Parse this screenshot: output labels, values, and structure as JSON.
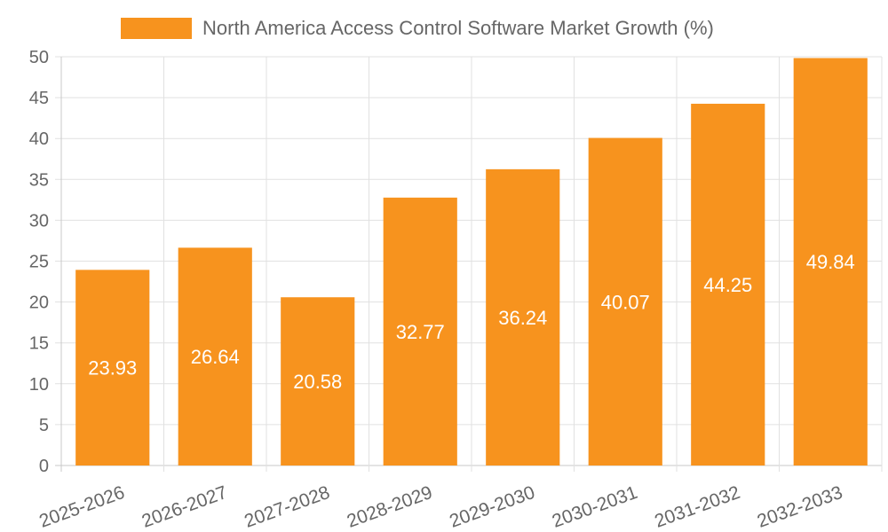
{
  "chart_data": {
    "type": "bar",
    "categories": [
      "2025-2026",
      "2026-2027",
      "2027-2028",
      "2028-2029",
      "2029-2030",
      "2030-2031",
      "2031-2032",
      "2032-2033"
    ],
    "series": [
      {
        "name": "North America Access Control Software Market Growth (%)",
        "values": [
          23.93,
          26.64,
          20.58,
          32.77,
          36.24,
          40.07,
          44.25,
          49.84
        ],
        "color": "#f7931e"
      }
    ],
    "data_labels": [
      "23.93",
      "26.64",
      "20.58",
      "32.77",
      "36.24",
      "40.07",
      "44.25",
      "49.84"
    ],
    "y_ticks": [
      "0",
      "5",
      "10",
      "15",
      "20",
      "25",
      "30",
      "35",
      "40",
      "45",
      "50"
    ],
    "ylim": [
      0,
      50
    ],
    "grid": true,
    "legend_position": "top-center"
  }
}
